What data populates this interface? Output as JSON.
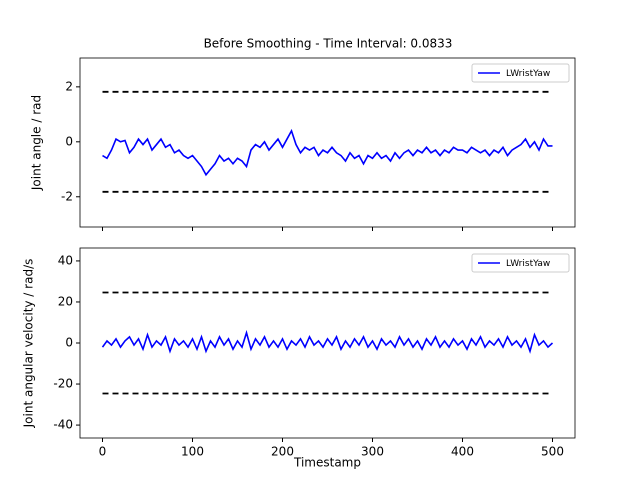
{
  "chart_data": [
    {
      "type": "line",
      "title": "Before Smoothing - Time Interval: 0.0833",
      "ylabel": "Joint angle / rad",
      "xlim": [
        -25,
        525
      ],
      "ylim": [
        -3.1,
        3.05
      ],
      "xticks": [
        0,
        100,
        200,
        300,
        400,
        500
      ],
      "show_xtick_labels": false,
      "yticks": [
        -2,
        0,
        2
      ],
      "legend": "upper right",
      "hlines": [
        1.82,
        -1.82
      ],
      "hline_color": "#000000",
      "x": [
        0,
        5,
        10,
        15,
        20,
        25,
        30,
        35,
        40,
        45,
        50,
        55,
        60,
        65,
        70,
        75,
        80,
        85,
        90,
        95,
        100,
        105,
        110,
        115,
        120,
        125,
        130,
        135,
        140,
        145,
        150,
        155,
        160,
        165,
        170,
        175,
        180,
        185,
        190,
        195,
        200,
        205,
        210,
        215,
        220,
        225,
        230,
        235,
        240,
        245,
        250,
        255,
        260,
        265,
        270,
        275,
        280,
        285,
        290,
        295,
        300,
        305,
        310,
        315,
        320,
        325,
        330,
        335,
        340,
        345,
        350,
        355,
        360,
        365,
        370,
        375,
        380,
        385,
        390,
        395,
        400,
        405,
        410,
        415,
        420,
        425,
        430,
        435,
        440,
        445,
        450,
        455,
        460,
        465,
        470,
        475,
        480,
        485,
        490,
        495,
        500
      ],
      "series": [
        {
          "name": "LWristYaw",
          "color": "#0000ff",
          "values": [
            -0.5,
            -0.6,
            -0.3,
            0.1,
            0.0,
            0.05,
            -0.4,
            -0.2,
            0.1,
            -0.1,
            0.1,
            -0.3,
            -0.1,
            0.1,
            -0.2,
            -0.1,
            -0.4,
            -0.3,
            -0.5,
            -0.6,
            -0.5,
            -0.7,
            -0.9,
            -1.2,
            -1.0,
            -0.8,
            -0.5,
            -0.7,
            -0.6,
            -0.8,
            -0.6,
            -0.7,
            -0.9,
            -0.3,
            -0.1,
            -0.2,
            0.0,
            -0.3,
            -0.1,
            0.1,
            -0.2,
            0.1,
            0.4,
            -0.1,
            -0.4,
            -0.2,
            -0.3,
            -0.2,
            -0.5,
            -0.3,
            -0.4,
            -0.2,
            -0.4,
            -0.5,
            -0.7,
            -0.4,
            -0.6,
            -0.5,
            -0.8,
            -0.5,
            -0.6,
            -0.4,
            -0.6,
            -0.5,
            -0.7,
            -0.4,
            -0.6,
            -0.4,
            -0.3,
            -0.5,
            -0.3,
            -0.4,
            -0.2,
            -0.4,
            -0.3,
            -0.5,
            -0.3,
            -0.4,
            -0.2,
            -0.3,
            -0.3,
            -0.4,
            -0.2,
            -0.3,
            -0.4,
            -0.3,
            -0.5,
            -0.3,
            -0.4,
            -0.2,
            -0.5,
            -0.3,
            -0.2,
            -0.1,
            0.1,
            -0.2,
            0.0,
            -0.3,
            0.1,
            -0.15,
            -0.15
          ]
        }
      ]
    },
    {
      "type": "line",
      "ylabel": "Joint angular velocity / rad/s",
      "xlabel": "Timestamp",
      "xlim": [
        -25,
        525
      ],
      "ylim": [
        -46.3,
        46.3
      ],
      "xticks": [
        0,
        100,
        200,
        300,
        400,
        500
      ],
      "show_xtick_labels": true,
      "yticks": [
        -40,
        -20,
        0,
        20,
        40
      ],
      "legend": "upper right",
      "hlines": [
        24.6,
        -24.6
      ],
      "hline_color": "#000000",
      "x": [
        0,
        5,
        10,
        15,
        20,
        25,
        30,
        35,
        40,
        45,
        50,
        55,
        60,
        65,
        70,
        75,
        80,
        85,
        90,
        95,
        100,
        105,
        110,
        115,
        120,
        125,
        130,
        135,
        140,
        145,
        150,
        155,
        160,
        165,
        170,
        175,
        180,
        185,
        190,
        195,
        200,
        205,
        210,
        215,
        220,
        225,
        230,
        235,
        240,
        245,
        250,
        255,
        260,
        265,
        270,
        275,
        280,
        285,
        290,
        295,
        300,
        305,
        310,
        315,
        320,
        325,
        330,
        335,
        340,
        345,
        350,
        355,
        360,
        365,
        370,
        375,
        380,
        385,
        390,
        395,
        400,
        405,
        410,
        415,
        420,
        425,
        430,
        435,
        440,
        445,
        450,
        455,
        460,
        465,
        470,
        475,
        480,
        485,
        490,
        495,
        500
      ],
      "series": [
        {
          "name": "LWristYaw",
          "color": "#0000ff",
          "values": [
            -2,
            1,
            -1,
            2,
            -2,
            1,
            3,
            -1,
            2,
            -3,
            4,
            -2,
            1,
            -1,
            3,
            -4,
            2,
            -1,
            1,
            -2,
            2,
            -3,
            3,
            -4,
            1,
            -2,
            3,
            -1,
            2,
            -3,
            1,
            -2,
            5,
            -3,
            2,
            -1,
            3,
            -2,
            1,
            -2,
            2,
            -3,
            1,
            -1,
            2,
            -2,
            3,
            -1,
            1,
            -2,
            2,
            -1,
            3,
            -3,
            1,
            -2,
            2,
            -1,
            3,
            -2,
            1,
            -3,
            2,
            -1,
            1,
            -2,
            3,
            -1,
            2,
            -2,
            1,
            -3,
            2,
            -1,
            3,
            -2,
            1,
            -2,
            2,
            -1,
            1,
            -3,
            2,
            -1,
            3,
            -2,
            1,
            -1,
            2,
            -2,
            3,
            -1,
            1,
            -2,
            2,
            -4,
            4,
            -1,
            1,
            -2,
            0
          ]
        }
      ]
    }
  ]
}
